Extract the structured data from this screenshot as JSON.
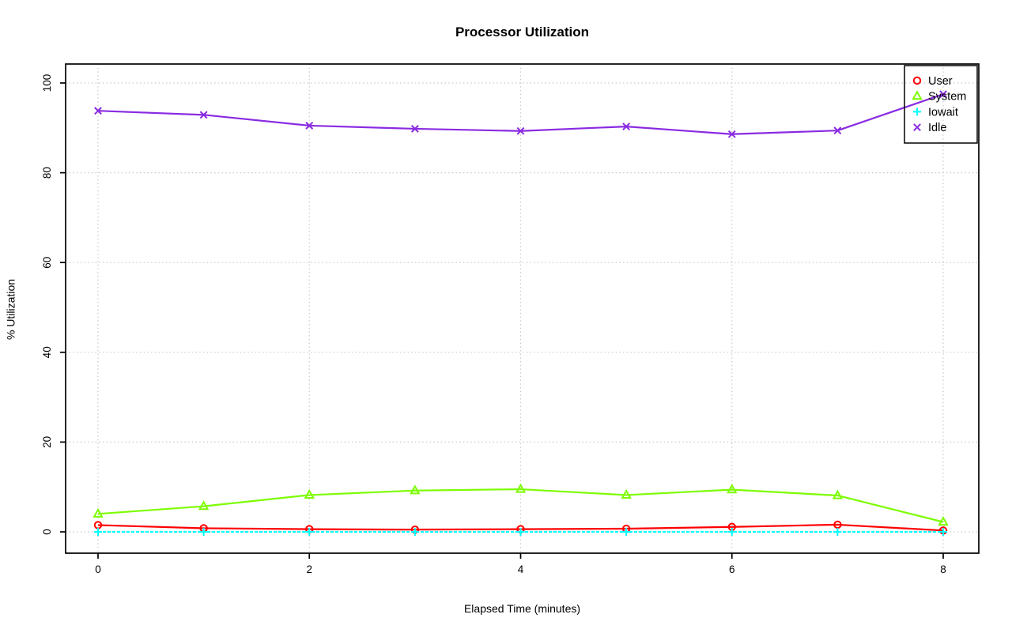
{
  "chart_data": {
    "type": "line",
    "title": "Processor Utilization",
    "xlabel": "Elapsed Time (minutes)",
    "ylabel": "% Utilization",
    "x": [
      0,
      1,
      2,
      3,
      4,
      5,
      6,
      7,
      8
    ],
    "xlim": [
      0,
      8
    ],
    "ylim": [
      0,
      100
    ],
    "xticks": [
      0,
      2,
      4,
      6,
      8
    ],
    "yticks": [
      0,
      20,
      40,
      60,
      80,
      100
    ],
    "grid": {
      "show": true,
      "style": "dotted",
      "color": "#c9c9c9"
    },
    "legend": {
      "position": "top-right",
      "entries": [
        "User",
        "System",
        "Iowait",
        "Idle"
      ]
    },
    "series": [
      {
        "name": "User",
        "color": "#ff0000",
        "marker": "circle",
        "dash": "",
        "values": [
          1.5,
          0.8,
          0.6,
          0.5,
          0.6,
          0.7,
          1.1,
          1.6,
          0.3
        ]
      },
      {
        "name": "System",
        "color": "#7cfc00",
        "marker": "triangle",
        "dash": "",
        "values": [
          4.0,
          5.7,
          8.2,
          9.2,
          9.5,
          8.2,
          9.4,
          8.1,
          2.2
        ]
      },
      {
        "name": "Iowait",
        "color": "#00ffff",
        "marker": "plus",
        "dash": "4,2",
        "values": [
          0,
          0,
          0,
          0,
          0,
          0,
          0,
          0,
          0
        ]
      },
      {
        "name": "Idle",
        "color": "#8a2be2",
        "marker": "x",
        "dash": "",
        "values": [
          93.8,
          92.9,
          90.5,
          89.8,
          89.3,
          90.3,
          88.6,
          89.4,
          97.5
        ]
      }
    ]
  }
}
